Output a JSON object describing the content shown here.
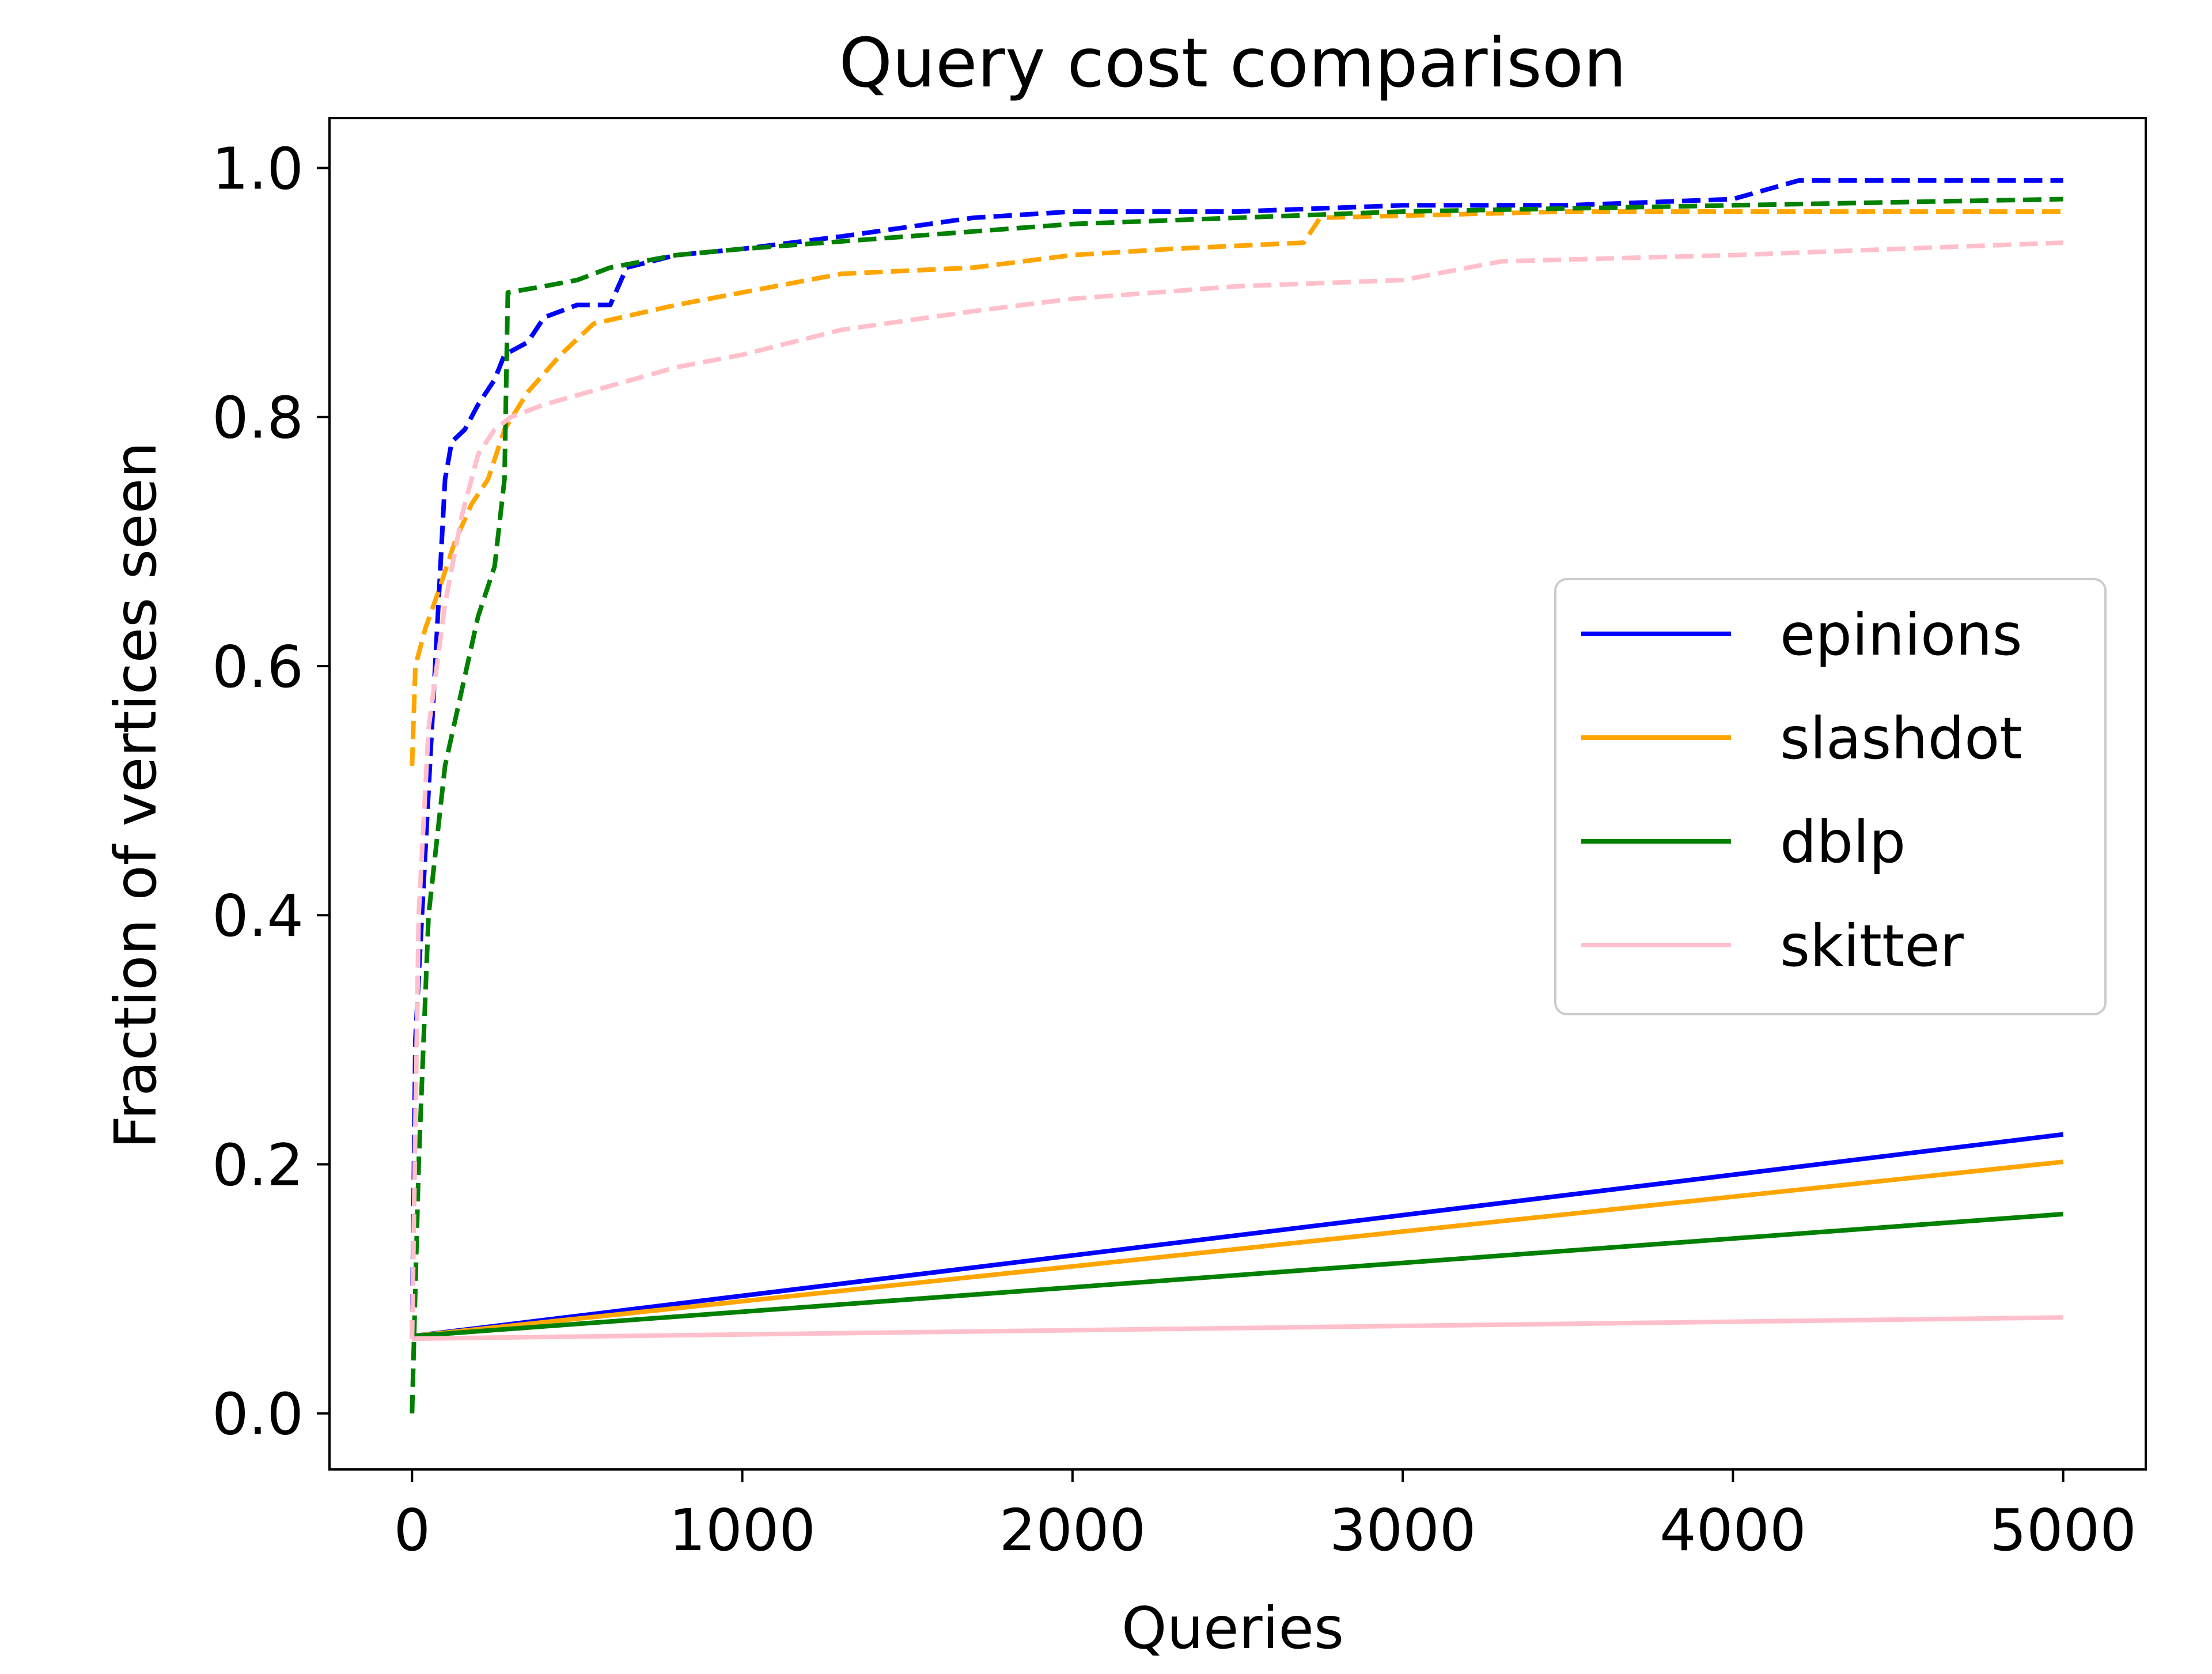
{
  "chart_data": {
    "type": "line",
    "title": "Query cost comparison",
    "xlabel": "Queries",
    "ylabel": "Fraction of vertices seen",
    "xlim": [
      -250,
      5250
    ],
    "ylim": [
      -0.045,
      1.04
    ],
    "xticks": [
      0,
      1000,
      2000,
      3000,
      4000,
      5000
    ],
    "yticks": [
      0.0,
      0.2,
      0.4,
      0.6,
      0.8,
      1.0
    ],
    "xtick_labels": [
      "0",
      "1000",
      "2000",
      "3000",
      "4000",
      "5000"
    ],
    "ytick_labels": [
      "0.0",
      "0.2",
      "0.4",
      "0.6",
      "0.8",
      "1.0"
    ],
    "grid": false,
    "legend_position": "center-right",
    "series": [
      {
        "name": "epinions",
        "color": "#0000ff",
        "style": "solid",
        "x": [
          0,
          5000
        ],
        "y": [
          0.062,
          0.224
        ]
      },
      {
        "name": "slashdot",
        "color": "#ffa500",
        "style": "solid",
        "x": [
          0,
          5000
        ],
        "y": [
          0.062,
          0.202
        ]
      },
      {
        "name": "dblp",
        "color": "#008000",
        "style": "solid",
        "x": [
          0,
          5000
        ],
        "y": [
          0.062,
          0.16
        ]
      },
      {
        "name": "skitter",
        "color": "#ffc0cb",
        "style": "solid",
        "x": [
          0,
          5000
        ],
        "y": [
          0.06,
          0.077
        ]
      },
      {
        "name": "",
        "color": "#0000ff",
        "style": "dashed",
        "x": [
          0,
          10,
          30,
          60,
          100,
          120,
          160,
          200,
          250,
          280,
          350,
          400,
          500,
          600,
          650,
          800,
          1000,
          1300,
          1700,
          2000,
          2500,
          3000,
          3500,
          4000,
          4200,
          5000
        ],
        "y": [
          0.06,
          0.3,
          0.4,
          0.55,
          0.75,
          0.78,
          0.79,
          0.81,
          0.83,
          0.85,
          0.86,
          0.88,
          0.89,
          0.89,
          0.92,
          0.93,
          0.935,
          0.945,
          0.96,
          0.965,
          0.965,
          0.97,
          0.97,
          0.975,
          0.99,
          0.99
        ]
      },
      {
        "name": "",
        "color": "#ffa500",
        "style": "dashed",
        "x": [
          0,
          10,
          40,
          80,
          130,
          180,
          230,
          280,
          350,
          450,
          550,
          800,
          1000,
          1300,
          1700,
          2000,
          2300,
          2700,
          2750,
          3500,
          4200,
          5000
        ],
        "y": [
          0.52,
          0.6,
          0.63,
          0.66,
          0.7,
          0.73,
          0.75,
          0.79,
          0.82,
          0.85,
          0.875,
          0.89,
          0.9,
          0.915,
          0.92,
          0.93,
          0.935,
          0.94,
          0.96,
          0.965,
          0.965,
          0.965
        ]
      },
      {
        "name": "",
        "color": "#008000",
        "style": "dashed",
        "x": [
          0,
          20,
          50,
          100,
          150,
          200,
          250,
          280,
          290,
          400,
          500,
          600,
          700,
          800,
          1000,
          1500,
          2000,
          2500,
          3000,
          4000,
          5000
        ],
        "y": [
          0.0,
          0.2,
          0.4,
          0.52,
          0.58,
          0.64,
          0.68,
          0.75,
          0.9,
          0.905,
          0.91,
          0.92,
          0.925,
          0.93,
          0.935,
          0.945,
          0.955,
          0.96,
          0.965,
          0.97,
          0.975
        ]
      },
      {
        "name": "",
        "color": "#ffc0cb",
        "style": "dashed",
        "x": [
          0,
          20,
          50,
          100,
          150,
          200,
          250,
          300,
          400,
          600,
          800,
          1000,
          1300,
          1700,
          2000,
          2500,
          3000,
          3300,
          4000,
          5000
        ],
        "y": [
          0.06,
          0.4,
          0.55,
          0.65,
          0.72,
          0.77,
          0.79,
          0.8,
          0.81,
          0.825,
          0.84,
          0.85,
          0.87,
          0.885,
          0.895,
          0.905,
          0.91,
          0.925,
          0.93,
          0.94
        ]
      }
    ]
  }
}
